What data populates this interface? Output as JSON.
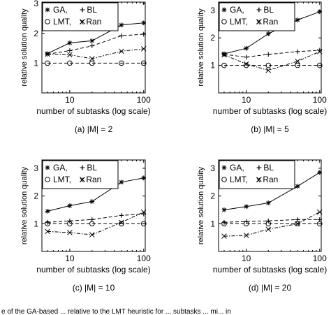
{
  "chart_data": [
    {
      "type": "line",
      "caption": "(a) |M| = 2",
      "xlabel": "number of subtasks (log scale)",
      "ylabel": "relative solution quality",
      "xscale": "log",
      "xlim": [
        4.2,
        105
      ],
      "ylim": [
        0,
        3.05
      ],
      "xticks": [
        10,
        100
      ],
      "yticks": [
        1,
        2,
        3
      ],
      "legend_placement": "top-left",
      "legend": [
        "GA,",
        "+ BL",
        "LMT,",
        "x Ran"
      ],
      "x": [
        5,
        10,
        20,
        50,
        100
      ],
      "series": [
        {
          "name": "GA",
          "marker": "asterisk",
          "dash": "solid",
          "values": [
            1.32,
            1.68,
            1.75,
            2.28,
            2.35
          ]
        },
        {
          "name": "BL",
          "marker": "plus",
          "dash": "dashed",
          "values": [
            1.3,
            1.42,
            1.58,
            1.92,
            1.97
          ]
        },
        {
          "name": "LMT",
          "marker": "circle",
          "dash": "dashed",
          "values": [
            1.0,
            1.0,
            1.0,
            1.0,
            1.0
          ]
        },
        {
          "name": "Ran",
          "marker": "x",
          "dash": "dashdot",
          "values": [
            1.3,
            1.28,
            1.15,
            1.4,
            1.48
          ]
        }
      ]
    },
    {
      "type": "line",
      "caption": "(b) |M| = 5",
      "xlabel": "number of subtasks (log scale)",
      "ylabel": "relative solution quality",
      "xscale": "log",
      "xlim": [
        4.2,
        105
      ],
      "ylim": [
        0,
        3.3
      ],
      "xticks": [
        10,
        100
      ],
      "yticks": [
        1,
        2,
        3
      ],
      "legend_placement": "top-left",
      "legend": [
        "GA,",
        "+ BL",
        "LMT,",
        "x Ran"
      ],
      "x": [
        5,
        10,
        20,
        50,
        100
      ],
      "series": [
        {
          "name": "GA",
          "marker": "asterisk",
          "dash": "solid",
          "values": [
            1.42,
            1.62,
            2.15,
            2.65,
            2.95
          ]
        },
        {
          "name": "BL",
          "marker": "plus",
          "dash": "dashed",
          "values": [
            1.4,
            1.3,
            1.4,
            1.5,
            1.55
          ]
        },
        {
          "name": "LMT",
          "marker": "circle",
          "dash": "dashed",
          "values": [
            1.0,
            1.0,
            1.0,
            1.0,
            1.0
          ]
        },
        {
          "name": "Ran",
          "marker": "x",
          "dash": "dashdot",
          "values": [
            1.38,
            1.05,
            0.82,
            1.15,
            1.5
          ]
        }
      ]
    },
    {
      "type": "line",
      "caption": "(c) |M| = 10",
      "xlabel": "number of subtasks (log scale)",
      "ylabel": "relative solution quality",
      "xscale": "log",
      "xlim": [
        4.2,
        105
      ],
      "ylim": [
        0,
        3.3
      ],
      "xticks": [
        10,
        100
      ],
      "yticks": [
        1,
        2,
        3
      ],
      "legend_placement": "top-left",
      "legend": [
        "GA,",
        "+ BL",
        "LMT,",
        "x Ran"
      ],
      "x": [
        5,
        10,
        20,
        50,
        100
      ],
      "series": [
        {
          "name": "GA",
          "marker": "asterisk",
          "dash": "solid",
          "values": [
            1.45,
            1.65,
            1.8,
            2.5,
            2.65
          ]
        },
        {
          "name": "BL",
          "marker": "plus",
          "dash": "dashed",
          "values": [
            1.05,
            1.1,
            1.15,
            1.3,
            1.35
          ]
        },
        {
          "name": "LMT",
          "marker": "circle",
          "dash": "dashed",
          "values": [
            1.0,
            1.0,
            1.0,
            1.0,
            1.0
          ]
        },
        {
          "name": "Ran",
          "marker": "x",
          "dash": "dashdot",
          "values": [
            0.72,
            0.68,
            0.6,
            1.05,
            1.42
          ]
        }
      ]
    },
    {
      "type": "line",
      "caption": "(d) |M| = 20",
      "xlabel": "number of subtasks (log scale)",
      "ylabel": "relative solution quality",
      "xscale": "log",
      "xlim": [
        4.2,
        105
      ],
      "ylim": [
        0,
        3.3
      ],
      "xticks": [
        10,
        100
      ],
      "yticks": [
        1,
        2,
        3
      ],
      "legend_placement": "top-left",
      "legend": [
        "GA,",
        "+ BL",
        "LMT,",
        "x Ran"
      ],
      "x": [
        5,
        10,
        20,
        50,
        100
      ],
      "series": [
        {
          "name": "GA",
          "marker": "asterisk",
          "dash": "solid",
          "values": [
            1.5,
            1.62,
            1.75,
            2.35,
            2.85
          ]
        },
        {
          "name": "BL",
          "marker": "plus",
          "dash": "dashed",
          "values": [
            1.05,
            1.08,
            1.1,
            1.15,
            1.15
          ]
        },
        {
          "name": "LMT",
          "marker": "circle",
          "dash": "dashed",
          "values": [
            1.0,
            1.0,
            1.0,
            1.0,
            1.0
          ]
        },
        {
          "name": "Ran",
          "marker": "x",
          "dash": "dashdot",
          "values": [
            0.55,
            0.58,
            0.8,
            1.0,
            1.42
          ]
        }
      ]
    }
  ],
  "footer_text": "e of the GA-based ... relative to the LMT heuristic for ... subtasks ... mi... in"
}
